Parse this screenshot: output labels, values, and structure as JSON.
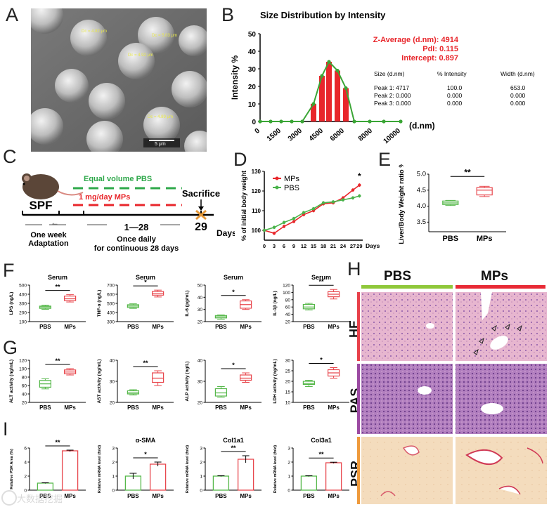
{
  "panel_labels": {
    "A": "A",
    "B": "B",
    "C": "C",
    "D": "D",
    "E": "E",
    "F": "F",
    "G": "G",
    "H": "H",
    "I": "I"
  },
  "sem": {
    "scale_bar": "5 μm",
    "diameter_labels": [
      "Dc = 4.82 μm",
      "Dc = 5.03 μm",
      "Dc = 4.92 μm",
      "Dc = 4.89 μm"
    ],
    "bg": "#6a6a6a"
  },
  "watermark": "大数据挖掘",
  "colors": {
    "red": "#e8262b",
    "green": "#3aa535",
    "pbs": "#56b84a",
    "mps": "#e8474d",
    "he": "#e4a9c6",
    "pas": "#a46ab0",
    "psr": "#f3d7b6"
  },
  "chart_data": [
    {
      "id": "B",
      "type": "bar",
      "title": "Size Distribution by Intensity",
      "ylabel": "Intensity %",
      "xlabel": "(d.nm)",
      "ylim": [
        0,
        50
      ],
      "yticks": [
        "0",
        "10",
        "20",
        "30",
        "40",
        "50"
      ],
      "xticks": [
        "0",
        "1500",
        "3000",
        "4500",
        "6000",
        "8000",
        "10000"
      ],
      "stats": [
        "Z-Average (d.nm): 4914",
        "PdI: 0.115",
        "Intercept: 0.897"
      ],
      "table": {
        "header": [
          "Size (d.nm)",
          "% Intensity",
          "Width (d.nm)"
        ],
        "rows": [
          [
            "Peak 1: 4717",
            "100.0",
            "653.0"
          ],
          [
            "Peak 2: 0.000",
            "0.000",
            "0.000"
          ],
          [
            "Peak 3: 0.000",
            "0.000",
            "0.000"
          ]
        ]
      },
      "bars": [
        {
          "x": 3800,
          "y": 10
        },
        {
          "x": 4400,
          "y": 26
        },
        {
          "x": 4900,
          "y": 34
        },
        {
          "x": 5500,
          "y": 29
        },
        {
          "x": 6100,
          "y": 19
        }
      ],
      "line_x": [
        0,
        750,
        1500,
        2250,
        3000,
        3800,
        4400,
        4900,
        5500,
        6100,
        6700,
        7800,
        8800,
        10000
      ],
      "line_y": [
        0,
        0,
        0,
        0,
        0,
        10,
        26,
        34,
        29,
        19,
        0,
        0,
        0,
        0
      ]
    },
    {
      "id": "D",
      "type": "line",
      "ylabel": "% of initial body weight",
      "xlabel": "Days",
      "ylim": [
        95,
        130
      ],
      "yticks": [
        "100",
        "110",
        "120",
        "130"
      ],
      "x": [
        0,
        3,
        6,
        9,
        12,
        15,
        18,
        21,
        24,
        27,
        29
      ],
      "series": [
        {
          "name": "MPs",
          "values": [
            100,
            98.5,
            102,
            104.5,
            108,
            110,
            113.5,
            114,
            116.5,
            120.5,
            123
          ]
        },
        {
          "name": "PBS",
          "values": [
            100,
            101.5,
            104,
            106,
            109,
            111,
            114,
            114.5,
            115.5,
            116.5,
            117.5
          ]
        }
      ],
      "annotation": "*"
    },
    {
      "id": "E",
      "type": "box",
      "ylabel": "Liver/Body Weight ratio %",
      "ylim": [
        3.2,
        5.0
      ],
      "yticks": [
        "3.5",
        "4.0",
        "4.5",
        "5.0"
      ],
      "categories": [
        "PBS",
        "MPs"
      ],
      "boxes": [
        [
          4.02,
          4.05,
          4.1,
          4.16,
          4.18
        ],
        [
          4.3,
          4.35,
          4.5,
          4.58,
          4.62
        ]
      ],
      "sig": "**"
    },
    {
      "id": "F1",
      "type": "box",
      "title": "Serum",
      "ylabel": "LPS (ng/L)",
      "yticks": [
        "100",
        "200",
        "300",
        "400",
        "500"
      ],
      "ylim": [
        100,
        500
      ],
      "categories": [
        "PBS",
        "MPs"
      ],
      "boxes": [
        [
          235,
          245,
          260,
          270,
          280
        ],
        [
          315,
          330,
          350,
          380,
          395
        ]
      ],
      "sig": "**"
    },
    {
      "id": "F2",
      "type": "box",
      "title": "Serum",
      "ylabel": "TNF-α (ng/L)",
      "yticks": [
        "300",
        "400",
        "500",
        "600",
        "700"
      ],
      "ylim": [
        300,
        700
      ],
      "categories": [
        "PBS",
        "MPs"
      ],
      "boxes": [
        [
          445,
          455,
          470,
          485,
          495
        ],
        [
          570,
          590,
          610,
          630,
          645
        ]
      ],
      "sig": "*"
    },
    {
      "id": "F3",
      "type": "box",
      "title": "Serum",
      "ylabel": "IL-6 (pg/mL)",
      "yticks": [
        "20",
        "30",
        "40",
        "50"
      ],
      "ylim": [
        20,
        50
      ],
      "categories": [
        "PBS",
        "MPs"
      ],
      "boxes": [
        [
          22,
          23,
          24,
          25,
          25.5
        ],
        [
          30,
          31,
          34,
          37,
          38
        ]
      ],
      "sig": "*"
    },
    {
      "id": "F4",
      "type": "box",
      "title": "Serum",
      "ylabel": "IL-1β (ng/L)",
      "yticks": [
        "20",
        "40",
        "60",
        "80",
        "100",
        "120"
      ],
      "ylim": [
        20,
        120
      ],
      "categories": [
        "PBS",
        "MPs"
      ],
      "boxes": [
        [
          52,
          55,
          60,
          67,
          70
        ],
        [
          82,
          88,
          95,
          102,
          108
        ]
      ],
      "sig": "**"
    },
    {
      "id": "G1",
      "type": "box",
      "ylabel": "ALT activity (ng/mL)",
      "yticks": [
        "20",
        "40",
        "60",
        "80",
        "100",
        "120"
      ],
      "ylim": [
        20,
        120
      ],
      "categories": [
        "PBS",
        "MPs"
      ],
      "boxes": [
        [
          52,
          56,
          64,
          72,
          76
        ],
        [
          85,
          88,
          92,
          97,
          100
        ]
      ],
      "sig": "**"
    },
    {
      "id": "G2",
      "type": "box",
      "ylabel": "AST activity (ng/mL)",
      "yticks": [
        "20",
        "30",
        "40"
      ],
      "ylim": [
        20,
        40
      ],
      "categories": [
        "PBS",
        "MPs"
      ],
      "boxes": [
        [
          23.5,
          24,
          24.5,
          25.5,
          26
        ],
        [
          28,
          29.5,
          31.5,
          34,
          35
        ]
      ],
      "sig": "**"
    },
    {
      "id": "G3",
      "type": "box",
      "ylabel": "ALP activity (ng/L)",
      "yticks": [
        "20",
        "30",
        "40"
      ],
      "ylim": [
        20,
        40
      ],
      "categories": [
        "PBS",
        "MPs"
      ],
      "boxes": [
        [
          22.5,
          23,
          24.5,
          26.5,
          27.5
        ],
        [
          29.5,
          30.5,
          31.5,
          33,
          34
        ]
      ],
      "sig": "*"
    },
    {
      "id": "G4",
      "type": "box",
      "ylabel": "LDH activity (ng/mL)",
      "yticks": [
        "10",
        "15",
        "20",
        "25",
        "30"
      ],
      "ylim": [
        10,
        30
      ],
      "categories": [
        "PBS",
        "MPs"
      ],
      "boxes": [
        [
          17.5,
          18.5,
          19,
          20,
          20.5
        ],
        [
          21.5,
          22.5,
          24,
          25.5,
          26.5
        ]
      ],
      "sig": "*"
    },
    {
      "id": "I1",
      "type": "bar",
      "ylabel": "Relative PSR Area (%)",
      "yticks": [
        "0",
        "2",
        "4",
        "6"
      ],
      "ylim": [
        0,
        6
      ],
      "categories": [
        "PBS",
        "MPs"
      ],
      "values": [
        1,
        5.6
      ],
      "errors": [
        0.05,
        0.1
      ],
      "sig": "**"
    },
    {
      "id": "I2",
      "type": "bar",
      "title": "α-SMA",
      "ylabel": "Relative mRNA level (fold)",
      "yticks": [
        "0",
        "1",
        "2",
        "3"
      ],
      "ylim": [
        0,
        3
      ],
      "categories": [
        "PBS",
        "MPs"
      ],
      "values": [
        1.0,
        1.85
      ],
      "errors": [
        0.2,
        0.15
      ],
      "sig": "*"
    },
    {
      "id": "I3",
      "type": "bar",
      "title": "Col1a1",
      "ylabel": "Relative mRNA level (fold)",
      "yticks": [
        "0",
        "1",
        "2",
        "3"
      ],
      "ylim": [
        0,
        3
      ],
      "categories": [
        "PBS",
        "MPs"
      ],
      "values": [
        1.0,
        2.2
      ],
      "errors": [
        0.03,
        0.25
      ],
      "sig": "**"
    },
    {
      "id": "I4",
      "type": "bar",
      "title": "Col3a1",
      "ylabel": "Relative mRNA level (fold)",
      "yticks": [
        "0",
        "1",
        "2",
        "3"
      ],
      "ylim": [
        0,
        3
      ],
      "categories": [
        "PBS",
        "MPs"
      ],
      "values": [
        1.0,
        1.95
      ],
      "errors": [
        0.03,
        0.04
      ],
      "sig": "**"
    }
  ],
  "timeline": {
    "pbs_label": "Equal volume PBS",
    "mps_label": "1 mg/day MPs",
    "sacrifice": "Sacrifice",
    "spf": "SPF",
    "range": "1—28",
    "day29": "29",
    "days": "Days",
    "adapt": [
      "One week",
      "Adaptation"
    ],
    "once": [
      "Once daily",
      "for continuous 28 days"
    ]
  },
  "histology": {
    "groups": [
      "PBS",
      "MPs"
    ],
    "stains": [
      "HE",
      "PAS",
      "PSR"
    ]
  }
}
